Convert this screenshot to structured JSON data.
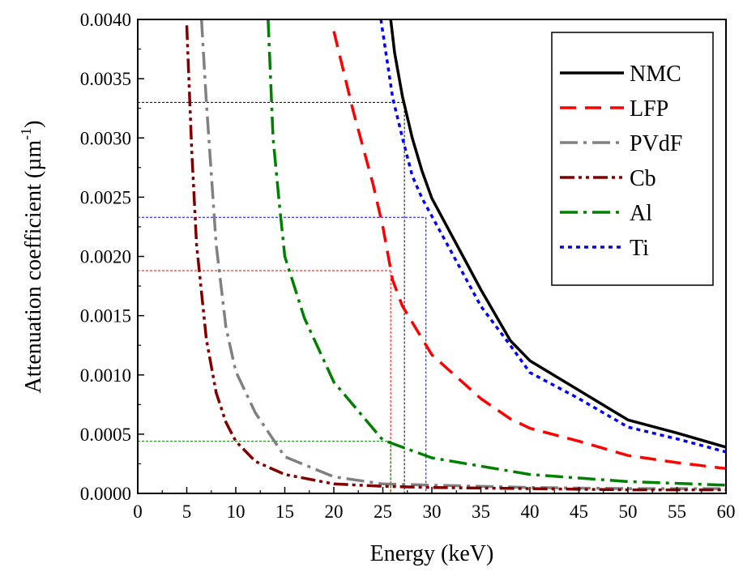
{
  "chart_data": {
    "type": "line",
    "title": "",
    "xlabel": "Energy (keV)",
    "ylabel_main": "Attenuation coefficient (µm",
    "ylabel_sup": "-1",
    "ylabel_close": ")",
    "xlim": [
      0,
      60
    ],
    "ylim": [
      0,
      0.004
    ],
    "x_ticks": [
      0,
      5,
      10,
      15,
      20,
      25,
      30,
      35,
      40,
      45,
      50,
      55,
      60
    ],
    "x_tick_labels": [
      "0",
      "5",
      "10",
      "15",
      "20",
      "25",
      "30",
      "35",
      "40",
      "45",
      "50",
      "55",
      "60"
    ],
    "y_ticks": [
      0,
      0.0005,
      0.001,
      0.0015,
      0.002,
      0.0025,
      0.003,
      0.0035,
      0.004
    ],
    "y_tick_labels": [
      "0.0000",
      "0.0005",
      "0.0010",
      "0.0015",
      "0.0020",
      "0.0025",
      "0.0030",
      "0.0035",
      "0.0040"
    ],
    "grid": false,
    "legend_position": "top-right",
    "series": [
      {
        "name": "NMC",
        "color": "#000000",
        "dash": "solid",
        "x": [
          25.8,
          26.2,
          27,
          28,
          29,
          30,
          35,
          38,
          40,
          45,
          50,
          55,
          60
        ],
        "y": [
          0.004,
          0.00372,
          0.00335,
          0.003,
          0.00272,
          0.00249,
          0.00172,
          0.00129,
          0.00112,
          0.00087,
          0.00062,
          0.00051,
          0.00039
        ]
      },
      {
        "name": "LFP",
        "color": "#ff0000",
        "dash": "dash",
        "x": [
          20,
          22,
          24,
          25,
          26,
          27,
          30,
          35,
          38,
          40,
          45,
          50,
          55,
          60
        ],
        "y": [
          0.0039,
          0.00322,
          0.00261,
          0.00225,
          0.0018,
          0.00158,
          0.00117,
          0.0008,
          0.00063,
          0.00055,
          0.00044,
          0.00032,
          0.00026,
          0.00021
        ]
      },
      {
        "name": "PVdF",
        "color": "#808080",
        "dash": "dashdot",
        "x": [
          6.5,
          7,
          8,
          9,
          10,
          12,
          15,
          20,
          25,
          30,
          40,
          50,
          60
        ],
        "y": [
          0.004,
          0.0033,
          0.0021,
          0.0014,
          0.00103,
          0.00068,
          0.00031,
          0.00014,
          8e-05,
          7e-05,
          5e-05,
          4e-05,
          4e-05
        ]
      },
      {
        "name": "Cb",
        "color": "#800000",
        "dash": "dashdotdot",
        "x": [
          5,
          5.5,
          6,
          7,
          8,
          9,
          10,
          12,
          15,
          20,
          25,
          30,
          40,
          50,
          60
        ],
        "y": [
          0.00395,
          0.0029,
          0.0021,
          0.0013,
          0.00085,
          0.0006,
          0.00044,
          0.00027,
          0.00016,
          8e-05,
          6e-05,
          5e-05,
          4e-05,
          3e-05,
          3e-05
        ]
      },
      {
        "name": "Al",
        "color": "#008000",
        "dash": "dashdot",
        "x": [
          13.3,
          13.8,
          14.5,
          15,
          17,
          20,
          25,
          30,
          40,
          50,
          60
        ],
        "y": [
          0.004,
          0.003,
          0.0024,
          0.002,
          0.00148,
          0.00094,
          0.00045,
          0.0003,
          0.00016,
          0.0001,
          7e-05
        ]
      },
      {
        "name": "Ti",
        "color": "#0000ff",
        "dash": "dot",
        "x": [
          24.8,
          26,
          27,
          28,
          29,
          30,
          35,
          38,
          40,
          45,
          50,
          55,
          60
        ],
        "y": [
          0.004,
          0.00334,
          0.003,
          0.00268,
          0.00249,
          0.00234,
          0.00158,
          0.00125,
          0.00102,
          0.0008,
          0.00056,
          0.00046,
          0.00035
        ]
      }
    ],
    "reference_lines": [
      {
        "color": "#000000",
        "x": 27.2,
        "y": 0.0033
      },
      {
        "color": "#0000ff",
        "x": 29.4,
        "y": 0.00233
      },
      {
        "color": "#ff0000",
        "x": 25.8,
        "y": 0.00188
      },
      {
        "color": "#008000",
        "x": 25.8,
        "y": 0.00044
      }
    ]
  }
}
